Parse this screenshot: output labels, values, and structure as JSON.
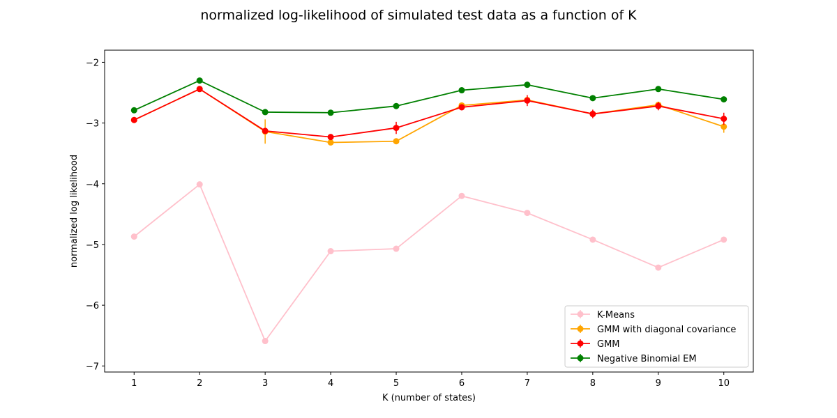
{
  "chart_data": {
    "type": "line",
    "title": "normalized log-likelihood of simulated test data as a function of K",
    "xlabel": "K (number of states)",
    "ylabel": "normalized log likelihood",
    "x": [
      1,
      2,
      3,
      4,
      5,
      6,
      7,
      8,
      9,
      10
    ],
    "xlim": [
      0.55,
      10.45
    ],
    "ylim": [
      -7.1,
      -1.8
    ],
    "xticks": [
      1,
      2,
      3,
      4,
      5,
      6,
      7,
      8,
      9,
      10
    ],
    "yticks": [
      -7,
      -6,
      -5,
      -4,
      -3,
      -2
    ],
    "ytick_labels": [
      "−7",
      "−6",
      "−5",
      "−4",
      "−3",
      "−2"
    ],
    "grid": false,
    "legend_position": "lower right",
    "series": [
      {
        "name": "K-Means",
        "color": "#ffc0cb",
        "values": [
          -4.87,
          -4.01,
          -6.59,
          -5.11,
          -5.07,
          -4.2,
          -4.48,
          -4.92,
          -5.38,
          -4.92
        ],
        "errors": [
          0.02,
          0.02,
          0.03,
          0.02,
          0.02,
          0.02,
          0.02,
          0.02,
          0.02,
          0.02
        ]
      },
      {
        "name": "GMM with diagonal covariance",
        "color": "#ffa500",
        "values": [
          -2.95,
          -2.44,
          -3.14,
          -3.32,
          -3.3,
          -2.71,
          -2.62,
          -2.85,
          -2.7,
          -3.06
        ],
        "errors": [
          0.02,
          0.02,
          0.2,
          0.03,
          0.03,
          0.03,
          0.04,
          0.04,
          0.04,
          0.1
        ]
      },
      {
        "name": "GMM",
        "color": "#ff0000",
        "values": [
          -2.95,
          -2.44,
          -3.13,
          -3.23,
          -3.08,
          -2.74,
          -2.63,
          -2.85,
          -2.72,
          -2.93
        ],
        "errors": [
          0.02,
          0.02,
          0.03,
          0.03,
          0.1,
          0.05,
          0.09,
          0.07,
          0.07,
          0.1
        ]
      },
      {
        "name": "Negative Binomial EM",
        "color": "#008000",
        "values": [
          -2.79,
          -2.3,
          -2.82,
          -2.83,
          -2.72,
          -2.46,
          -2.37,
          -2.59,
          -2.44,
          -2.61
        ],
        "errors": [
          0.02,
          0.02,
          0.02,
          0.02,
          0.02,
          0.03,
          0.05,
          0.02,
          0.02,
          0.02
        ]
      }
    ]
  }
}
